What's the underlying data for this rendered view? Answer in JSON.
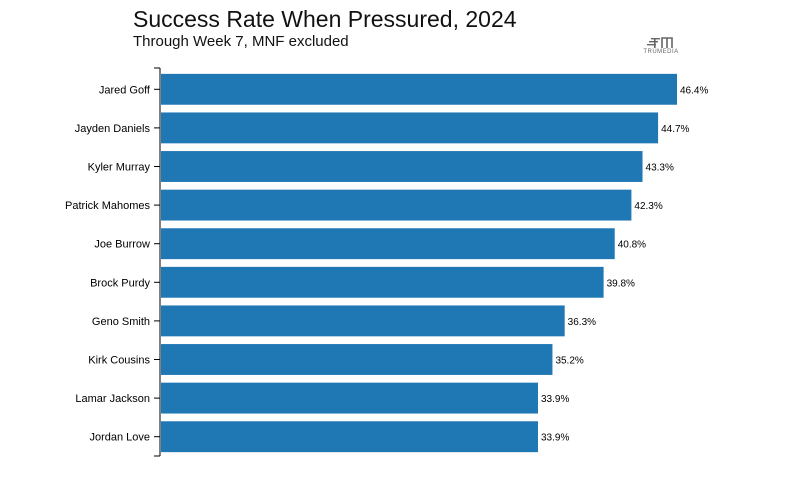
{
  "title": "Success Rate When Pressured, 2024",
  "subtitle": "Through Week 7, MNF excluded",
  "logo": {
    "text": "TRUMEDIA",
    "icon": "trumedia-logo-icon"
  },
  "colors": {
    "bar": "#1f77b4",
    "axis": "#000000"
  },
  "chart_data": {
    "type": "bar",
    "orientation": "horizontal",
    "title": "Success Rate When Pressured, 2024",
    "subtitle": "Through Week 7, MNF excluded",
    "xlabel": "",
    "ylabel": "",
    "xlim": [
      0,
      46.4
    ],
    "grid": false,
    "categories": [
      "Jared Goff",
      "Jayden Daniels",
      "Kyler Murray",
      "Patrick Mahomes",
      "Joe Burrow",
      "Brock Purdy",
      "Geno Smith",
      "Kirk Cousins",
      "Lamar Jackson",
      "Jordan Love"
    ],
    "values": [
      46.4,
      44.7,
      43.3,
      42.3,
      40.8,
      39.8,
      36.3,
      35.2,
      33.9,
      33.9
    ],
    "value_labels": [
      "46.4%",
      "44.7%",
      "43.3%",
      "42.3%",
      "40.8%",
      "39.8%",
      "36.3%",
      "35.2%",
      "33.9%",
      "33.9%"
    ]
  }
}
